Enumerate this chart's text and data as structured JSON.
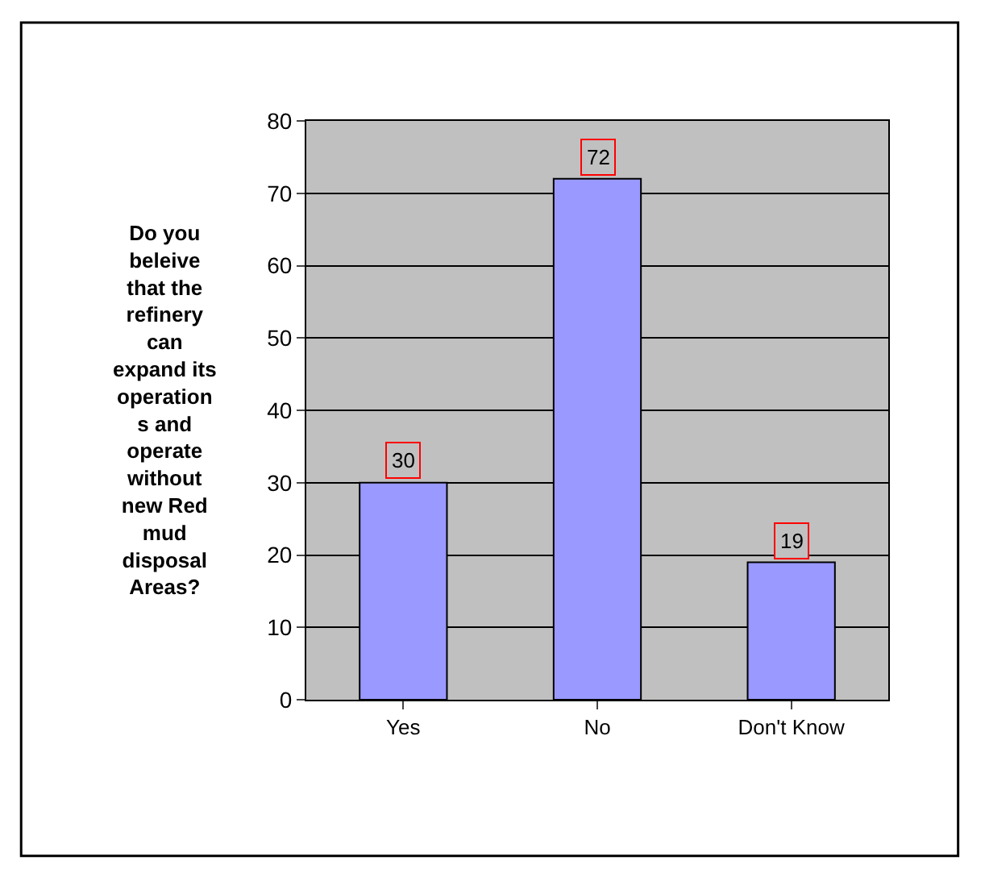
{
  "chart_data": {
    "type": "bar",
    "ylabel": "Do you\nbeleive\nthat the\nrefinery\ncan\nexpand its\noperation\ns and\noperate\nwithout\nnew Red\nmud\ndisposal\nAreas?",
    "categories": [
      "Yes",
      "No",
      "Don't Know"
    ],
    "values": [
      30,
      72,
      19
    ],
    "color": "#9999ff",
    "ylim": [
      0,
      80
    ],
    "yticks": [
      0,
      10,
      20,
      30,
      40,
      50,
      60,
      70,
      80
    ],
    "grid": "y",
    "data_labels": true
  }
}
